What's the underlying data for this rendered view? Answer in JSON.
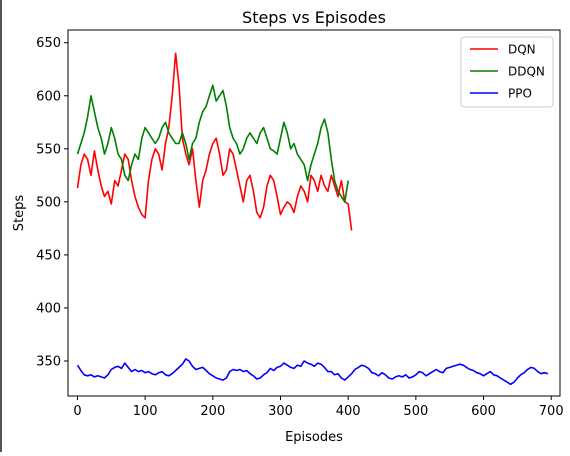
{
  "chart_data": {
    "type": "line",
    "title": "Steps vs Episodes",
    "xlabel": "Episodes",
    "ylabel": "Steps",
    "xlim": [
      -14,
      713
    ],
    "ylim": [
      317,
      662
    ],
    "xticks": [
      0,
      100,
      200,
      300,
      400,
      500,
      600,
      700
    ],
    "yticks": [
      350,
      400,
      450,
      500,
      550,
      600,
      650
    ],
    "grid": false,
    "legend_position": "top-right",
    "series": [
      {
        "name": "DQN",
        "color": "#ff0000",
        "x": [
          0,
          5,
          10,
          15,
          20,
          25,
          30,
          35,
          40,
          45,
          50,
          55,
          60,
          65,
          70,
          75,
          80,
          85,
          90,
          95,
          100,
          105,
          110,
          115,
          120,
          125,
          130,
          135,
          140,
          145,
          150,
          155,
          160,
          165,
          170,
          175,
          180,
          185,
          190,
          195,
          200,
          205,
          210,
          215,
          220,
          225,
          230,
          235,
          240,
          245,
          250,
          255,
          260,
          265,
          270,
          275,
          280,
          285,
          290,
          295,
          300,
          305,
          310,
          315,
          320,
          325,
          330,
          335,
          340,
          345,
          350,
          355,
          360,
          365,
          370,
          375,
          380,
          385,
          390,
          395,
          400,
          405
        ],
        "values": [
          513,
          535,
          545,
          540,
          525,
          548,
          530,
          515,
          505,
          510,
          498,
          520,
          515,
          530,
          545,
          540,
          520,
          505,
          495,
          488,
          485,
          520,
          540,
          550,
          545,
          530,
          555,
          570,
          600,
          640,
          610,
          560,
          545,
          535,
          550,
          520,
          495,
          520,
          530,
          545,
          555,
          560,
          545,
          525,
          530,
          550,
          545,
          530,
          515,
          500,
          520,
          525,
          510,
          490,
          485,
          495,
          515,
          525,
          520,
          505,
          488,
          495,
          500,
          497,
          490,
          505,
          515,
          510,
          500,
          525,
          520,
          510,
          525,
          515,
          510,
          525,
          515,
          505,
          520,
          500,
          498,
          473
        ]
      },
      {
        "name": "DDQN",
        "color": "#008000",
        "x": [
          0,
          5,
          10,
          15,
          20,
          25,
          30,
          35,
          40,
          45,
          50,
          55,
          60,
          65,
          70,
          75,
          80,
          85,
          90,
          95,
          100,
          105,
          110,
          115,
          120,
          125,
          130,
          135,
          140,
          145,
          150,
          155,
          160,
          165,
          170,
          175,
          180,
          185,
          190,
          195,
          200,
          205,
          210,
          215,
          220,
          225,
          230,
          235,
          240,
          245,
          250,
          255,
          260,
          265,
          270,
          275,
          280,
          285,
          290,
          295,
          300,
          305,
          310,
          315,
          320,
          325,
          330,
          335,
          340,
          345,
          350,
          355,
          360,
          365,
          370,
          375,
          380,
          385,
          390,
          395,
          400
        ],
        "values": [
          545,
          555,
          565,
          580,
          600,
          585,
          570,
          560,
          545,
          555,
          570,
          560,
          545,
          540,
          525,
          520,
          535,
          545,
          540,
          560,
          570,
          565,
          560,
          555,
          560,
          570,
          575,
          565,
          560,
          555,
          555,
          565,
          555,
          540,
          555,
          560,
          575,
          585,
          590,
          600,
          610,
          595,
          600,
          605,
          590,
          570,
          560,
          555,
          545,
          550,
          560,
          565,
          560,
          555,
          565,
          570,
          560,
          550,
          548,
          545,
          560,
          575,
          565,
          550,
          555,
          545,
          540,
          535,
          520,
          535,
          545,
          555,
          570,
          578,
          565,
          540,
          520,
          510,
          505,
          500,
          520
        ]
      },
      {
        "name": "PPO",
        "color": "#0000ff",
        "x": [
          0,
          5,
          10,
          15,
          20,
          25,
          30,
          35,
          40,
          45,
          50,
          55,
          60,
          65,
          70,
          75,
          80,
          85,
          90,
          95,
          100,
          105,
          110,
          115,
          120,
          125,
          130,
          135,
          140,
          145,
          150,
          155,
          160,
          165,
          170,
          175,
          180,
          185,
          190,
          195,
          200,
          205,
          210,
          215,
          220,
          225,
          230,
          235,
          240,
          245,
          250,
          255,
          260,
          265,
          270,
          275,
          280,
          285,
          290,
          295,
          300,
          305,
          310,
          315,
          320,
          325,
          330,
          335,
          340,
          345,
          350,
          355,
          360,
          365,
          370,
          375,
          380,
          385,
          390,
          395,
          400,
          405,
          410,
          415,
          420,
          425,
          430,
          435,
          440,
          445,
          450,
          455,
          460,
          465,
          470,
          475,
          480,
          485,
          490,
          495,
          500,
          505,
          510,
          515,
          520,
          525,
          530,
          535,
          540,
          545,
          550,
          555,
          560,
          565,
          570,
          575,
          580,
          585,
          590,
          595,
          600,
          605,
          610,
          615,
          620,
          625,
          630,
          635,
          640,
          645,
          650,
          655,
          660,
          665,
          670,
          675,
          680,
          685,
          690,
          695
        ],
        "values": [
          346,
          341,
          337,
          336,
          337,
          335,
          336,
          335,
          334,
          337,
          342,
          344,
          345,
          343,
          348,
          344,
          340,
          342,
          340,
          341,
          339,
          340,
          338,
          337,
          339,
          340,
          337,
          336,
          338,
          341,
          344,
          347,
          352,
          350,
          345,
          342,
          343,
          344,
          341,
          338,
          336,
          334,
          333,
          332,
          334,
          340,
          342,
          341,
          342,
          340,
          341,
          338,
          336,
          333,
          334,
          337,
          339,
          343,
          341,
          344,
          345,
          348,
          346,
          344,
          343,
          346,
          345,
          350,
          348,
          347,
          345,
          348,
          347,
          344,
          340,
          340,
          337,
          338,
          334,
          332,
          335,
          338,
          342,
          344,
          346,
          345,
          343,
          339,
          338,
          336,
          339,
          337,
          334,
          333,
          335,
          336,
          335,
          337,
          334,
          335,
          337,
          340,
          339,
          336,
          338,
          340,
          342,
          340,
          339,
          343,
          344,
          345,
          346,
          347,
          346,
          344,
          342,
          341,
          339,
          338,
          336,
          338,
          340,
          337,
          336,
          334,
          332,
          330,
          328,
          330,
          334,
          337,
          339,
          342,
          344,
          343,
          340,
          338,
          339,
          338
        ]
      }
    ]
  }
}
